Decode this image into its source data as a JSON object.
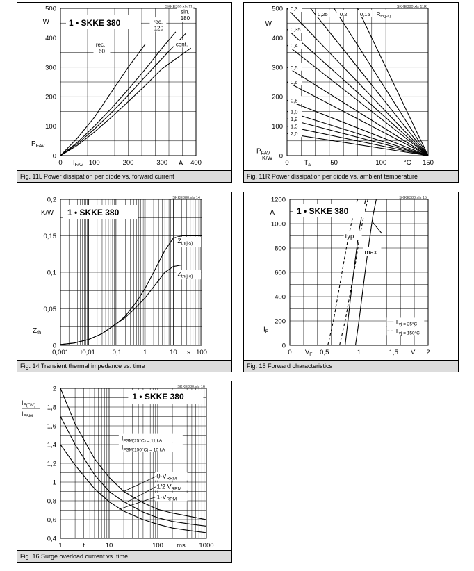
{
  "charts": [
    {
      "id": "fig11l",
      "caption": "Fig. 11L Power dissipation per diode vs. forward current",
      "file_tag": "SKKE380.xls 11L",
      "chart_data": {
        "type": "line",
        "title": "1 • SKKE 380",
        "xlabel": "I_FAV",
        "xunit": "A",
        "ylabel": "P_FAV",
        "yunit": "W",
        "xlim": [
          0,
          400
        ],
        "ylim": [
          0,
          500
        ],
        "xticks": [
          "0",
          "100",
          "200",
          "300",
          "400"
        ],
        "yticks": [
          "0",
          "100",
          "200",
          "300",
          "400",
          "500"
        ],
        "grid": true,
        "series": [
          {
            "name": "rec. 60",
            "x": [
              0,
              50,
              100,
              150,
              200,
              250
            ],
            "y": [
              0,
              60,
              130,
              215,
              300,
              378
            ]
          },
          {
            "name": "rec. 120",
            "x": [
              0,
              50,
              100,
              150,
              200,
              250,
              300,
              340
            ],
            "y": [
              0,
              45,
              100,
              160,
              225,
              293,
              365,
              420
            ]
          },
          {
            "name": "sin. 180",
            "x": [
              0,
              50,
              100,
              150,
              200,
              250,
              300,
              370
            ],
            "y": [
              0,
              40,
              90,
              145,
              205,
              268,
              330,
              415
            ]
          },
          {
            "name": "cont.",
            "x": [
              0,
              50,
              100,
              150,
              200,
              250,
              300,
              385
            ],
            "y": [
              0,
              35,
              80,
              130,
              183,
              238,
              295,
              365
            ]
          }
        ],
        "annotations": [
          {
            "text": "rec.",
            "x": 118,
            "y": 370
          },
          {
            "text": "60",
            "x": 122,
            "y": 348
          },
          {
            "text": "rec.",
            "x": 288,
            "y": 448
          },
          {
            "text": "120",
            "x": 290,
            "y": 426
          },
          {
            "text": "sin.",
            "x": 368,
            "y": 482
          },
          {
            "text": "180",
            "x": 368,
            "y": 460
          },
          {
            "text": "cont.",
            "x": 358,
            "y": 372
          }
        ]
      }
    },
    {
      "id": "fig11r",
      "caption": "Fig. 11R Power dissipation per diode vs. ambient temperature",
      "file_tag": "SKKE380.xls 11R",
      "chart_data": {
        "type": "line",
        "xlabel": "T_a",
        "xunit": "°C",
        "ylabel": "P_FAV",
        "yunit": "W",
        "rth_unit": "K/W",
        "xlim": [
          0,
          150
        ],
        "ylim": [
          0,
          500
        ],
        "xticks": [
          "0",
          "50",
          "100",
          "150"
        ],
        "yticks": [
          "0",
          "100",
          "200",
          "300",
          "400",
          "500"
        ],
        "grid": true,
        "rth_header": [
          "0,25",
          "0,2",
          "0,15"
        ],
        "rth_header_label": "R_th(j-a)",
        "rth_side": [
          "0,3",
          "0,35",
          "0,4",
          "0,5",
          "0,6",
          "0,8",
          "1,0",
          "1,2",
          "1,5",
          "2,0"
        ],
        "series": [
          {
            "name": "0,15",
            "x": [
              150,
              75
            ],
            "y": [
              0,
              500
            ]
          },
          {
            "name": "0,2",
            "x": [
              150,
              50
            ],
            "y": [
              0,
              500
            ]
          },
          {
            "name": "0,25",
            "x": [
              150,
              25
            ],
            "y": [
              0,
              500
            ]
          },
          {
            "name": "0,3",
            "x": [
              150,
              0
            ],
            "y": [
              0,
              500
            ]
          },
          {
            "name": "0,35",
            "x": [
              150,
              0
            ],
            "y": [
              0,
              429
            ]
          },
          {
            "name": "0,4",
            "x": [
              150,
              0
            ],
            "y": [
              0,
              375
            ]
          },
          {
            "name": "0,5",
            "x": [
              150,
              0
            ],
            "y": [
              0,
              300
            ]
          },
          {
            "name": "0,6",
            "x": [
              150,
              0
            ],
            "y": [
              0,
              250
            ]
          },
          {
            "name": "0,8",
            "x": [
              150,
              0
            ],
            "y": [
              0,
              188
            ]
          },
          {
            "name": "1,0",
            "x": [
              150,
              0
            ],
            "y": [
              0,
              150
            ]
          },
          {
            "name": "1,2",
            "x": [
              150,
              0
            ],
            "y": [
              0,
              125
            ]
          },
          {
            "name": "1,5",
            "x": [
              150,
              0
            ],
            "y": [
              0,
              100
            ]
          },
          {
            "name": "2,0",
            "x": [
              150,
              0
            ],
            "y": [
              0,
              75
            ]
          }
        ]
      }
    },
    {
      "id": "fig14",
      "caption": "Fig. 14 Transient thermal impedance vs. time",
      "file_tag": "SKKE380.xls 14",
      "chart_data": {
        "type": "line",
        "title": "1 • SKKE 380",
        "xlabel": "t",
        "xunit": "s",
        "xscale": "log",
        "ylabel": "Z_th",
        "yunit": "K/W",
        "xlim": [
          0.001,
          100
        ],
        "ylim": [
          0,
          0.2
        ],
        "xticks": [
          "0,001",
          "0,01",
          "0,1",
          "1",
          "10",
          "100"
        ],
        "yticks": [
          "0",
          "0,05",
          "0,1",
          "0,15",
          "0,2"
        ],
        "grid": true,
        "series": [
          {
            "name": "Z_th(j-s)",
            "x": [
              0.001,
              0.003,
              0.01,
              0.03,
              0.1,
              0.2,
              0.5,
              1,
              2,
              5,
              10,
              20,
              100
            ],
            "y": [
              0.001,
              0.003,
              0.008,
              0.016,
              0.03,
              0.04,
              0.06,
              0.078,
              0.1,
              0.13,
              0.147,
              0.15,
              0.15
            ]
          },
          {
            "name": "Z_th(j-c)",
            "x": [
              0.001,
              0.003,
              0.01,
              0.03,
              0.1,
              0.2,
              0.5,
              1,
              2,
              5,
              10,
              20,
              100
            ],
            "y": [
              0.001,
              0.003,
              0.008,
              0.016,
              0.03,
              0.038,
              0.053,
              0.065,
              0.08,
              0.1,
              0.108,
              0.11,
              0.11
            ]
          }
        ]
      }
    },
    {
      "id": "fig15",
      "caption": "Fig. 15 Forward characteristics",
      "file_tag": "SKKE380.xls 15",
      "chart_data": {
        "type": "line",
        "title": "1 • SKKE 380",
        "xlabel": "V_F",
        "xunit": "V",
        "ylabel": "I_F",
        "yunit": "A",
        "xlim": [
          0,
          2
        ],
        "ylim": [
          0,
          1200
        ],
        "xticks": [
          "0",
          "0,5",
          "1",
          "1,5",
          "2"
        ],
        "yticks": [
          "0",
          "200",
          "400",
          "600",
          "800",
          "1000",
          "1200"
        ],
        "grid": true,
        "series": [
          {
            "name": "typ. T_vj = 25°C",
            "dash": false,
            "x": [
              0.8,
              0.85,
              0.9,
              0.95,
              1.0,
              1.05,
              1.1
            ],
            "y": [
              0,
              250,
              500,
              720,
              940,
              1100,
              1200
            ]
          },
          {
            "name": "typ. T_vj = 150°C",
            "dash": true,
            "x": [
              0.55,
              0.63,
              0.7,
              0.77,
              0.84,
              0.92,
              0.98
            ],
            "y": [
              0,
              200,
              420,
              650,
              870,
              1080,
              1200
            ]
          },
          {
            "name": "max. T_vj = 25°C",
            "dash": false,
            "x": [
              0.95,
              1.0,
              1.05,
              1.1,
              1.15,
              1.2,
              1.25
            ],
            "y": [
              0,
              200,
              430,
              650,
              860,
              1060,
              1200
            ]
          },
          {
            "name": "max. T_vj = 150°C",
            "dash": true,
            "x": [
              0.72,
              0.8,
              0.87,
              0.94,
              1.0,
              1.07,
              1.13
            ],
            "y": [
              0,
              200,
              420,
              640,
              860,
              1070,
              1200
            ]
          }
        ],
        "legend": [
          {
            "text": "T_vj = 25°C",
            "style": "solid"
          },
          {
            "text": "T_vj = 150°C",
            "style": "dashed"
          }
        ],
        "annotations": [
          {
            "text": "typ.",
            "x": 0.8,
            "y": 880
          },
          {
            "text": "max.",
            "x": 1.08,
            "y": 750
          }
        ]
      }
    },
    {
      "id": "fig16",
      "caption": "Fig. 16 Surge overload current vs. time",
      "file_tag": "SKKE380.xls 16",
      "chart_data": {
        "type": "line",
        "title": "1 • SKKE 380",
        "xlabel": "t",
        "xunit": "ms",
        "xscale": "log",
        "ylabel": "I_F(OV) / I_FSM",
        "xlim": [
          1,
          1000
        ],
        "ylim": [
          0.4,
          2
        ],
        "xticks": [
          "1",
          "10",
          "100",
          "1000"
        ],
        "yticks": [
          "0,4",
          "0,6",
          "0,8",
          "1",
          "1,2",
          "1,4",
          "1,6",
          "1,8",
          "2"
        ],
        "grid": true,
        "series": [
          {
            "name": "0·V_RRM",
            "x": [
              1,
              2,
              5,
              10,
              20,
              50,
              100,
              200,
              500,
              1000
            ],
            "y": [
              2.0,
              1.62,
              1.25,
              1.05,
              0.9,
              0.78,
              0.71,
              0.67,
              0.63,
              0.6
            ]
          },
          {
            "name": "1/2 V_RRM",
            "x": [
              1,
              2,
              5,
              10,
              20,
              50,
              100,
              200,
              500,
              1000
            ],
            "y": [
              1.7,
              1.4,
              1.08,
              0.9,
              0.79,
              0.68,
              0.62,
              0.58,
              0.55,
              0.53
            ]
          },
          {
            "name": "1·V_RRM",
            "x": [
              1,
              2,
              5,
              10,
              20,
              50,
              100,
              200,
              500,
              1000
            ],
            "y": [
              1.4,
              1.18,
              0.93,
              0.79,
              0.69,
              0.6,
              0.55,
              0.51,
              0.48,
              0.46
            ]
          }
        ],
        "info": [
          "I_FSM(25°C) = 11 kA",
          "I_FSM(150°C) = 10 kA"
        ]
      }
    }
  ]
}
